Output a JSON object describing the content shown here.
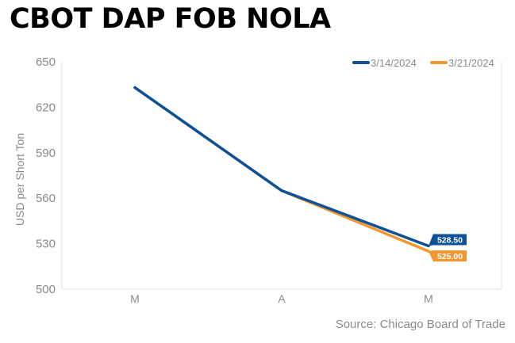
{
  "title": "CBOT DAP FOB NOLA",
  "source": "Source: Chicago Board of Trade",
  "colors": {
    "series_1": "#0d5299",
    "series_2": "#f2962f",
    "axis_text": "#8a8a8a",
    "grid": "#e2e2e2"
  },
  "chart_data": {
    "type": "line",
    "title": "CBOT DAP FOB NOLA",
    "xlabel": "",
    "ylabel": "USD per Short Ton",
    "categories": [
      "M",
      "A",
      "M"
    ],
    "ylim": [
      500,
      650
    ],
    "yticks": [
      "650",
      "620",
      "590",
      "560",
      "530",
      "500"
    ],
    "grid": false,
    "legend_position": "top-right",
    "series": [
      {
        "name": "3/14/2024",
        "color": "#0d5299",
        "values": [
          633,
          565,
          528.5
        ],
        "end_label": "528.50"
      },
      {
        "name": "3/21/2024",
        "color": "#f2962f",
        "values": [
          633,
          565,
          525.0
        ],
        "end_label": "525.00"
      }
    ]
  }
}
